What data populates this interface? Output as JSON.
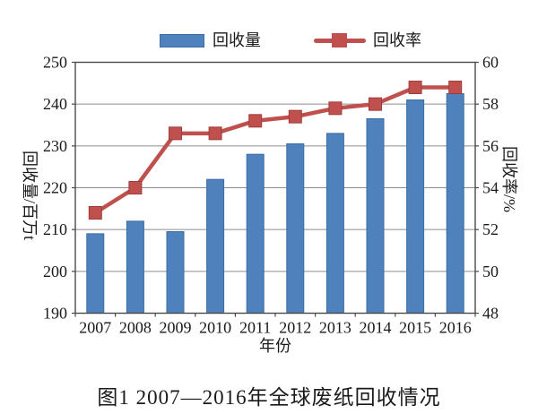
{
  "figure": {
    "caption": "图1 2007—2016年全球废纸回收情况"
  },
  "chart_data": {
    "type": "combo",
    "categories": [
      "2007",
      "2008",
      "2009",
      "2010",
      "2011",
      "2012",
      "2013",
      "2014",
      "2015",
      "2016"
    ],
    "series": [
      {
        "name": "回收量",
        "type": "bar",
        "axis": "left",
        "color": "#4F81BD",
        "border_color": "#3A6EA5",
        "values": [
          209,
          212,
          209.5,
          222,
          228,
          230.5,
          233,
          236.5,
          241,
          242.5
        ]
      },
      {
        "name": "回收率",
        "type": "line",
        "axis": "right",
        "color": "#C0504D",
        "marker": "square",
        "marker_border": "#9E3D3B",
        "values": [
          52.8,
          54,
          56.6,
          56.6,
          57.2,
          57.4,
          57.8,
          58,
          58.8,
          58.8
        ]
      }
    ],
    "xlabel": "年份",
    "left_axis": {
      "label": "回收量/百万t",
      "min": 190,
      "max": 250,
      "step": 10,
      "ticks": [
        "250",
        "240",
        "230",
        "220",
        "210",
        "200",
        "190"
      ]
    },
    "right_axis": {
      "label": "回收率/%",
      "min": 48,
      "max": 60,
      "step": 2,
      "ticks": [
        "60",
        "58",
        "56",
        "54",
        "52",
        "50",
        "48"
      ]
    },
    "grid": true,
    "legend_position": "top"
  },
  "colors": {
    "background": "#ffffff",
    "grid": "#8c8c8c",
    "axis": "#4a4a4a",
    "text": "#1a1a1a"
  }
}
